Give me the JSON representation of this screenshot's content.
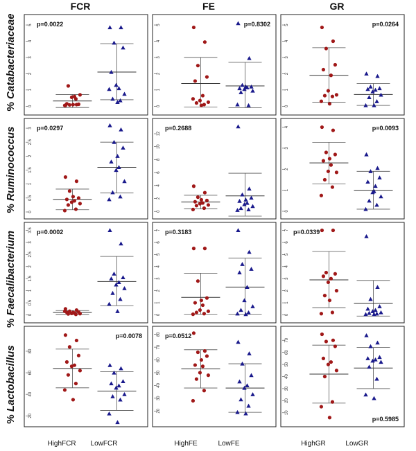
{
  "chart_data": {
    "type": "scatter",
    "columns": [
      "FCR",
      "FE",
      "GR"
    ],
    "rows": [
      {
        "prefix": "% ",
        "taxon": "Catabacteriaceae"
      },
      {
        "prefix": "% ",
        "taxon": "Ruminococcus"
      },
      {
        "prefix": "% ",
        "taxon": "Faecalibacterium"
      },
      {
        "prefix": "% ",
        "taxon": "Lactobacillus"
      }
    ],
    "group_labels": [
      [
        "HighFCR",
        "LowFCR"
      ],
      [
        "HighFE",
        "LowFE"
      ],
      [
        "HighGR",
        "LowGR"
      ]
    ],
    "series_colors": {
      "high": "#a01818",
      "low": "#1a1a8c"
    },
    "series_markers": {
      "high": "circle",
      "low": "triangle"
    },
    "panels": [
      {
        "row": 0,
        "col": 0,
        "ylim": [
          -0.2,
          5.3
        ],
        "ticks": [
          0,
          1,
          2,
          3,
          4,
          5
        ],
        "p_value": "p=0.0022",
        "p_pos": "top-left",
        "high": {
          "values": [
            0.05,
            0.1,
            0.08,
            0.12,
            0.15,
            0.6,
            0.55,
            0.7,
            1.25,
            0.45,
            0.05,
            0.1
          ],
          "mean": 0.32,
          "sd_low": -0.08,
          "sd_high": 0.72
        },
        "low": {
          "values": [
            4.85,
            4.85,
            3.9,
            3.6,
            2.1,
            1.1,
            1.3,
            0.75,
            0.45,
            0.35,
            1.05,
            0.25
          ],
          "mean": 2.1,
          "sd_low": 0.4,
          "sd_high": 3.85
        }
      },
      {
        "row": 0,
        "col": 1,
        "ylim": [
          -0.2,
          5.3
        ],
        "ticks": [
          0,
          1,
          2,
          3,
          4,
          5
        ],
        "p_value": "p=0.8302",
        "p_pos": "top-right",
        "high": {
          "values": [
            4.85,
            3.95,
            2.5,
            1.8,
            1.55,
            0.65,
            0.35,
            0.25,
            0.2,
            0.1,
            0.45,
            0.05
          ],
          "mean": 1.4,
          "sd_low": -0.05,
          "sd_high": 3.0
        },
        "low": {
          "values": [
            5.1,
            2.95,
            1.3,
            1.2,
            1.1,
            1.15,
            1.05,
            0.95,
            0.85,
            0.05,
            0.1,
            1.2
          ],
          "mean": 1.25,
          "sd_low": -0.1,
          "sd_high": 2.7
        }
      },
      {
        "row": 0,
        "col": 2,
        "ylim": [
          -0.2,
          5.3
        ],
        "ticks": [
          0,
          1,
          2,
          3,
          4,
          5
        ],
        "p_value": "p=0.0264",
        "p_pos": "top-right",
        "high": {
          "values": [
            4.85,
            4.0,
            3.55,
            2.55,
            2.25,
            1.9,
            0.95,
            0.7,
            0.65,
            0.6,
            0.3,
            0.15
          ],
          "mean": 1.9,
          "sd_low": 0.25,
          "sd_high": 3.6
        },
        "low": {
          "values": [
            2.0,
            1.85,
            1.2,
            1.1,
            1.05,
            1.0,
            0.9,
            0.7,
            0.55,
            0.3,
            0.05,
            0.05
          ],
          "mean": 0.72,
          "sd_low": 0.05,
          "sd_high": 1.4
        }
      },
      {
        "row": 1,
        "col": 0,
        "ylim": [
          -0.05,
          3.15
        ],
        "ticks": [
          0.0,
          0.5,
          1.0,
          1.5,
          2.0,
          2.5,
          3.0
        ],
        "p_value": "p=0.0297",
        "p_pos": "top-left",
        "high": {
          "values": [
            1.25,
            1.1,
            0.75,
            0.5,
            0.45,
            0.4,
            0.35,
            0.3,
            0.25,
            0.1,
            0.05,
            0.55
          ],
          "mean": 0.45,
          "sd_low": 0.08,
          "sd_high": 0.82
        },
        "low": {
          "values": [
            3.1,
            2.95,
            2.5,
            2.3,
            1.8,
            1.6,
            1.5,
            1.1,
            0.7,
            0.55,
            0.45,
            2.0
          ],
          "mean": 1.6,
          "sd_low": 0.68,
          "sd_high": 2.5
        }
      },
      {
        "row": 1,
        "col": 1,
        "ylim": [
          -0.3,
          13.5
        ],
        "ticks": [
          0,
          2,
          4,
          6,
          8,
          10,
          12
        ],
        "p_value": "p=0.2688",
        "p_pos": "top-left",
        "high": {
          "values": [
            3.9,
            2.9,
            2.2,
            1.7,
            1.5,
            1.3,
            1.2,
            1.0,
            0.9,
            0.5,
            0.3,
            1.8
          ],
          "mean": 1.45,
          "sd_low": 0.4,
          "sd_high": 2.5
        },
        "low": {
          "values": [
            13.1,
            3.5,
            2.6,
            2.1,
            1.6,
            1.3,
            1.1,
            0.8,
            0.5,
            0.3,
            0.2,
            1.8
          ],
          "mean": 2.4,
          "sd_low": -0.9,
          "sd_high": 5.9
        }
      },
      {
        "row": 1,
        "col": 2,
        "ylim": [
          -0.1,
          4.15
        ],
        "ticks": [
          0,
          1,
          2,
          3,
          4
        ],
        "p_value": "p=0.0093",
        "p_pos": "top-right",
        "high": {
          "values": [
            4.0,
            3.85,
            2.8,
            2.7,
            2.4,
            2.2,
            1.9,
            1.85,
            1.5,
            1.15,
            0.75,
            2.5
          ],
          "mean": 2.3,
          "sd_low": 1.3,
          "sd_high": 3.28
        },
        "low": {
          "values": [
            2.7,
            2.05,
            1.9,
            1.6,
            1.4,
            1.2,
            0.9,
            0.7,
            0.5,
            0.3,
            0.1,
            0.95
          ],
          "mean": 1.0,
          "sd_low": 0.1,
          "sd_high": 1.9
        }
      },
      {
        "row": 2,
        "col": 0,
        "ylim": [
          -0.1,
          3.6
        ],
        "ticks": [
          0.0,
          0.5,
          1.0,
          1.5,
          2.0,
          2.5,
          3.0,
          3.5
        ],
        "p_value": "p=0.0002",
        "p_pos": "top-left",
        "high": {
          "values": [
            0.25,
            0.2,
            0.15,
            0.12,
            0.1,
            0.08,
            0.06,
            0.05,
            0.04,
            0.02,
            0.15,
            0.1
          ],
          "mean": 0.1,
          "sd_low": 0.02,
          "sd_high": 0.18
        },
        "low": {
          "values": [
            3.5,
            2.95,
            1.7,
            1.55,
            1.5,
            1.35,
            1.25,
            1.1,
            0.9,
            0.65,
            0.45,
            0.15
          ],
          "mean": 1.38,
          "sd_low": 0.38,
          "sd_high": 2.42
        },
        "low_overlap_above": true
      },
      {
        "row": 2,
        "col": 1,
        "ylim": [
          -0.2,
          7.2
        ],
        "ticks": [
          0,
          1,
          2,
          3,
          4,
          5,
          6,
          7
        ],
        "p_value": "p=0.3183",
        "p_pos": "top-left",
        "high": {
          "values": [
            5.5,
            5.5,
            2.8,
            1.4,
            1.0,
            0.8,
            0.4,
            0.3,
            0.2,
            0.1,
            0.05,
            1.2
          ],
          "mean": 1.45,
          "sd_low": 0.05,
          "sd_high": 3.45
        },
        "low": {
          "values": [
            7.0,
            5.2,
            4.2,
            3.8,
            3.5,
            2.3,
            1.2,
            0.7,
            0.4,
            0.2,
            0.1,
            0.05
          ],
          "mean": 2.3,
          "sd_low": 0.05,
          "sd_high": 4.7
        }
      },
      {
        "row": 2,
        "col": 2,
        "ylim": [
          -0.2,
          7.2
        ],
        "ticks": [
          0,
          1,
          2,
          3,
          4,
          5,
          6,
          7
        ],
        "p_value": "p=0.0339",
        "p_pos": "top-left",
        "high": {
          "values": [
            7.0,
            7.0,
            3.5,
            3.4,
            3.2,
            3.0,
            2.7,
            2.0,
            1.6,
            0.2,
            0.1,
            1.2
          ],
          "mean": 2.9,
          "sd_low": 0.6,
          "sd_high": 5.25
        },
        "low": {
          "values": [
            6.5,
            2.3,
            1.3,
            0.7,
            0.5,
            0.4,
            0.3,
            0.2,
            0.15,
            0.1,
            0.05,
            0.05
          ],
          "mean": 0.95,
          "sd_low": -0.1,
          "sd_high": 2.85
        }
      },
      {
        "row": 3,
        "col": 0,
        "ylim": [
          15,
          98
        ],
        "ticks": [
          20,
          40,
          60,
          80
        ],
        "p_value": "p=0.0078",
        "p_pos": "top-right",
        "high": {
          "values": [
            95,
            90,
            84,
            76,
            70,
            67,
            66,
            62,
            58,
            50,
            44,
            35
          ],
          "mean": 64,
          "sd_low": 46,
          "sd_high": 82
        },
        "low": {
          "values": [
            67,
            64,
            60,
            52,
            50,
            48,
            46,
            40,
            38,
            35,
            22,
            14
          ],
          "mean": 43,
          "sd_low": 25,
          "sd_high": 61
        }
      },
      {
        "row": 3,
        "col": 1,
        "ylim": [
          12,
          82
        ],
        "ticks": [
          20,
          30,
          40,
          50,
          60,
          70,
          80
        ],
        "p_value": "p=0.0512",
        "p_pos": "top-left",
        "high": {
          "values": [
            81,
            67,
            66,
            63,
            56,
            55,
            50,
            48,
            45,
            36,
            28,
            60
          ],
          "mean": 53,
          "sd_low": 38,
          "sd_high": 68
        },
        "low": {
          "values": [
            74,
            65,
            57,
            48,
            43,
            40,
            38,
            33,
            29,
            24,
            19,
            18
          ],
          "mean": 38,
          "sd_low": 19,
          "sd_high": 57
        }
      },
      {
        "row": 3,
        "col": 2,
        "ylim": [
          3,
          77
        ],
        "ticks": [
          10,
          20,
          30,
          40,
          50,
          60,
          70
        ],
        "p_value": "p=0.5985",
        "p_pos": "bottom-right",
        "high": {
          "values": [
            75,
            70,
            69,
            65,
            55,
            52,
            50,
            45,
            40,
            19,
            15,
            6
          ],
          "mean": 42,
          "sd_low": 18,
          "sd_high": 66
        },
        "low": {
          "values": [
            74,
            68,
            65,
            56,
            55,
            54,
            53,
            52,
            48,
            38,
            25,
            22
          ],
          "mean": 47,
          "sd_low": 30,
          "sd_high": 64
        }
      }
    ]
  }
}
